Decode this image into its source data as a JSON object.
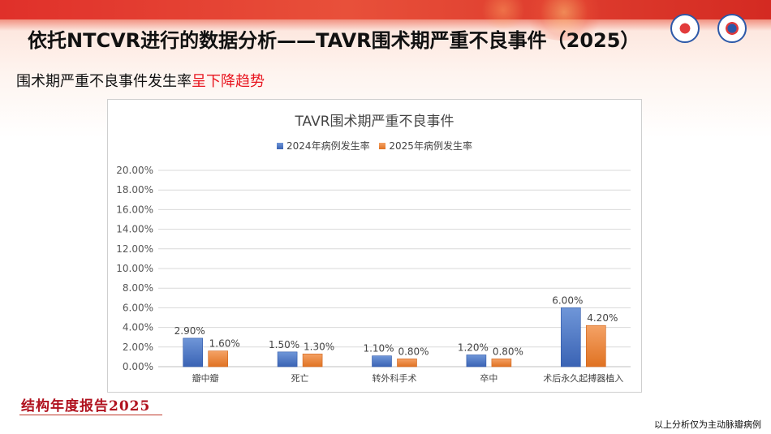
{
  "header": {
    "title": "依托NTCVR进行的数据分析——TAVR围术期严重不良事件（2025）",
    "subtitle_prefix": "围术期严重不良事件发生率",
    "subtitle_highlight": "呈下降趋势"
  },
  "logos": [
    "hospital-logo-icon",
    "medical-logo-icon"
  ],
  "colors": {
    "series_2024": "#4472c4",
    "series_2025": "#ed7d31",
    "highlight_text": "#e8141e",
    "brand_text": "#b0111e"
  },
  "chart_data": {
    "type": "bar",
    "title": "TAVR围术期严重不良事件",
    "categories": [
      "瓣中瓣",
      "死亡",
      "转外科手术",
      "卒中",
      "术后永久起搏器植入"
    ],
    "series": [
      {
        "name": "2024年病例发生率",
        "values": [
          2.9,
          1.5,
          1.1,
          1.2,
          6.0
        ],
        "labels": [
          "2.90%",
          "1.50%",
          "1.10%",
          "1.20%",
          "6.00%"
        ]
      },
      {
        "name": "2025年病例发生率",
        "values": [
          1.6,
          1.3,
          0.8,
          0.8,
          4.2
        ],
        "labels": [
          "1.60%",
          "1.30%",
          "0.80%",
          "0.80%",
          "4.20%"
        ]
      }
    ],
    "y_ticks": [
      "0.00%",
      "2.00%",
      "4.00%",
      "6.00%",
      "8.00%",
      "10.00%",
      "12.00%",
      "14.00%",
      "16.00%",
      "18.00%",
      "20.00%"
    ],
    "ylim": [
      0,
      20
    ],
    "grid": true,
    "legend_position": "top"
  },
  "footer": {
    "brand": "结构年度报告2025",
    "note": "以上分析仅为主动脉瓣病例"
  }
}
